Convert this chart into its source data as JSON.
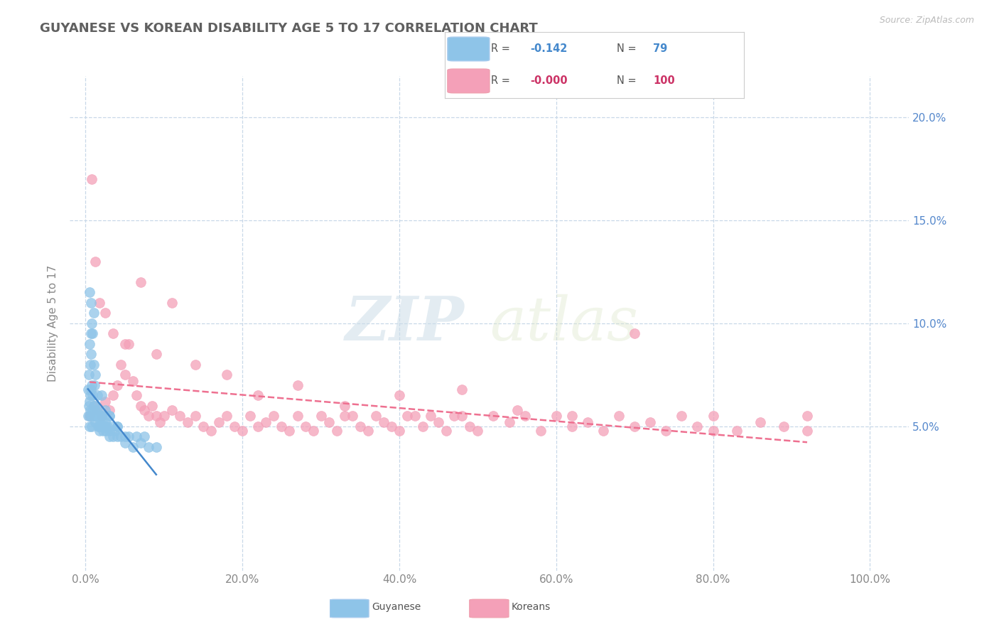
{
  "title": "GUYANESE VS KOREAN DISABILITY AGE 5 TO 17 CORRELATION CHART",
  "source_text": "Source: ZipAtlas.com",
  "ylabel": "Disability Age 5 to 17",
  "xlim": [
    -2,
    105
  ],
  "ylim": [
    -2,
    22
  ],
  "xtick_labels": [
    "0.0%",
    "20.0%",
    "40.0%",
    "60.0%",
    "80.0%",
    "100.0%"
  ],
  "xtick_values": [
    0,
    20,
    40,
    60,
    80,
    100
  ],
  "ytick_labels": [
    "5.0%",
    "10.0%",
    "15.0%",
    "20.0%"
  ],
  "ytick_values": [
    5,
    10,
    15,
    20
  ],
  "guyanese_R": "-0.142",
  "guyanese_N": "79",
  "korean_R": "-0.000",
  "korean_N": "100",
  "guyanese_color": "#8ec4e8",
  "korean_color": "#f4a0b8",
  "guyanese_trend_color": "#4488cc",
  "korean_trend_color": "#ee7090",
  "watermark_zip": "ZIP",
  "watermark_atlas": "atlas",
  "background_color": "#ffffff",
  "grid_color": "#c8d8e8",
  "title_color": "#606060",
  "right_ytick_color": "#5588cc",
  "guyanese_x": [
    0.3,
    0.3,
    0.4,
    0.5,
    0.5,
    0.5,
    0.6,
    0.6,
    0.7,
    0.7,
    0.7,
    0.8,
    0.8,
    0.9,
    0.9,
    1.0,
    1.0,
    1.0,
    1.1,
    1.1,
    1.2,
    1.2,
    1.2,
    1.3,
    1.4,
    1.5,
    1.5,
    1.6,
    1.7,
    1.8,
    1.9,
    2.0,
    2.0,
    2.1,
    2.2,
    2.3,
    2.5,
    2.6,
    2.8,
    3.0,
    3.0,
    3.2,
    3.5,
    3.8,
    4.0,
    4.5,
    5.0,
    5.5,
    6.0,
    6.5,
    7.0,
    7.5,
    8.0,
    9.0,
    0.4,
    0.5,
    0.6,
    0.7,
    0.8,
    0.9,
    1.0,
    1.1,
    1.2,
    1.5,
    2.0,
    2.5,
    3.0,
    4.0,
    0.5,
    0.7,
    1.0,
    1.2,
    1.5,
    1.8,
    2.0,
    2.5,
    3.0,
    4.0,
    5.0
  ],
  "guyanese_y": [
    5.5,
    6.8,
    6.0,
    5.5,
    6.2,
    9.0,
    5.8,
    8.0,
    5.5,
    8.5,
    9.5,
    5.0,
    10.0,
    5.8,
    9.5,
    5.5,
    10.5,
    8.0,
    6.0,
    7.0,
    5.2,
    7.5,
    5.5,
    5.8,
    5.8,
    5.5,
    6.5,
    5.0,
    5.5,
    4.8,
    5.2,
    5.5,
    5.0,
    5.2,
    4.8,
    5.0,
    5.2,
    4.8,
    5.0,
    4.5,
    5.5,
    5.0,
    4.5,
    4.8,
    4.5,
    4.5,
    4.2,
    4.5,
    4.0,
    4.5,
    4.2,
    4.5,
    4.0,
    4.0,
    7.5,
    5.0,
    6.5,
    6.8,
    7.0,
    6.5,
    6.0,
    5.8,
    5.5,
    5.5,
    6.5,
    5.8,
    5.5,
    5.0,
    11.5,
    11.0,
    5.5,
    5.5,
    5.5,
    5.0,
    5.5,
    5.0,
    4.8,
    5.0,
    4.5
  ],
  "korean_x": [
    0.5,
    1.0,
    1.5,
    2.0,
    2.5,
    3.0,
    3.5,
    4.0,
    4.5,
    5.0,
    5.5,
    6.0,
    6.5,
    7.0,
    7.5,
    8.0,
    8.5,
    9.0,
    9.5,
    10.0,
    11.0,
    12.0,
    13.0,
    14.0,
    15.0,
    16.0,
    17.0,
    18.0,
    19.0,
    20.0,
    21.0,
    22.0,
    23.0,
    24.0,
    25.0,
    26.0,
    27.0,
    28.0,
    29.0,
    30.0,
    31.0,
    32.0,
    33.0,
    34.0,
    35.0,
    36.0,
    37.0,
    38.0,
    39.0,
    40.0,
    41.0,
    42.0,
    43.0,
    44.0,
    45.0,
    46.0,
    47.0,
    48.0,
    49.0,
    50.0,
    52.0,
    54.0,
    56.0,
    58.0,
    60.0,
    62.0,
    64.0,
    66.0,
    68.0,
    70.0,
    72.0,
    74.0,
    76.0,
    78.0,
    80.0,
    83.0,
    86.0,
    89.0,
    92.0,
    0.8,
    1.2,
    1.8,
    2.5,
    3.5,
    5.0,
    7.0,
    9.0,
    11.0,
    14.0,
    18.0,
    22.0,
    27.0,
    33.0,
    40.0,
    48.0,
    55.0,
    62.0,
    70.0,
    80.0,
    92.0
  ],
  "korean_y": [
    5.5,
    6.0,
    5.8,
    5.5,
    6.2,
    5.8,
    6.5,
    7.0,
    8.0,
    7.5,
    9.0,
    7.2,
    6.5,
    6.0,
    5.8,
    5.5,
    6.0,
    5.5,
    5.2,
    5.5,
    5.8,
    5.5,
    5.2,
    5.5,
    5.0,
    4.8,
    5.2,
    5.5,
    5.0,
    4.8,
    5.5,
    5.0,
    5.2,
    5.5,
    5.0,
    4.8,
    5.5,
    5.0,
    4.8,
    5.5,
    5.2,
    4.8,
    5.5,
    5.5,
    5.0,
    4.8,
    5.5,
    5.2,
    5.0,
    4.8,
    5.5,
    5.5,
    5.0,
    5.5,
    5.2,
    4.8,
    5.5,
    5.5,
    5.0,
    4.8,
    5.5,
    5.2,
    5.5,
    4.8,
    5.5,
    5.0,
    5.2,
    4.8,
    5.5,
    9.5,
    5.2,
    4.8,
    5.5,
    5.0,
    5.5,
    4.8,
    5.2,
    5.0,
    4.8,
    17.0,
    13.0,
    11.0,
    10.5,
    9.5,
    9.0,
    12.0,
    8.5,
    11.0,
    8.0,
    7.5,
    6.5,
    7.0,
    6.0,
    6.5,
    6.8,
    5.8,
    5.5,
    5.0,
    4.8,
    5.5
  ]
}
